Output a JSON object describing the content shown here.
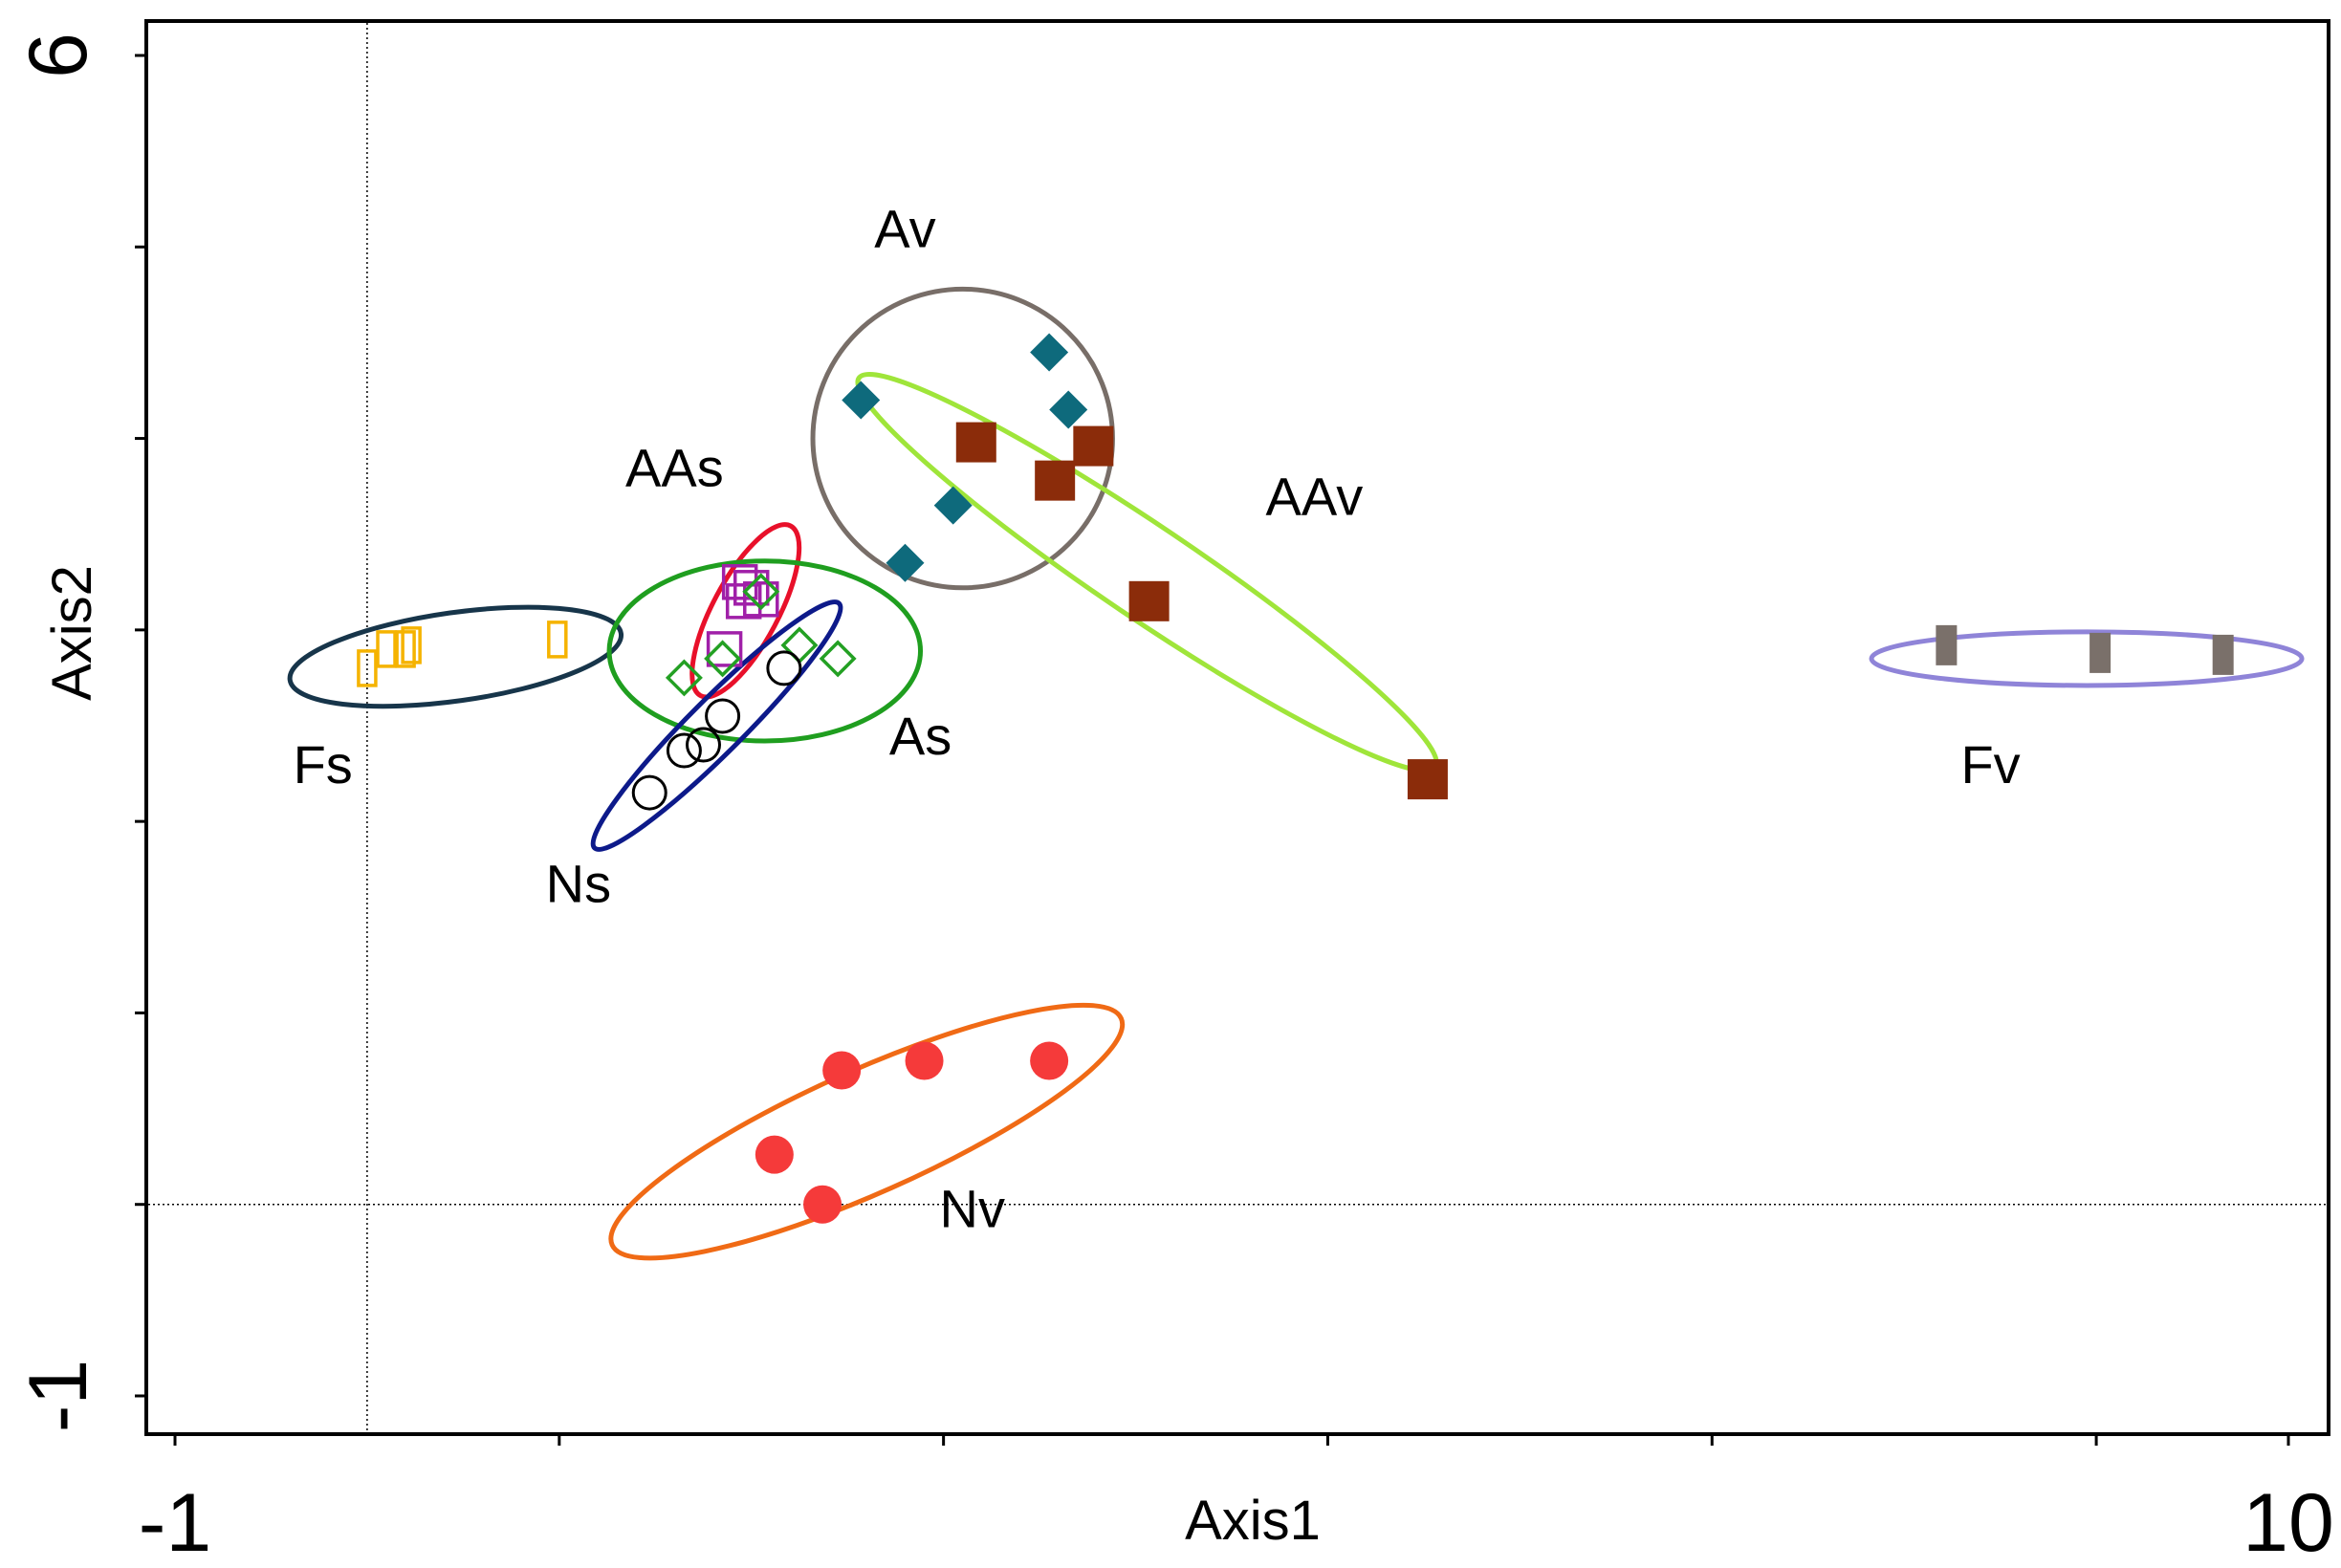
{
  "chart_data": {
    "type": "scatter",
    "xlabel": "Axis1",
    "ylabel": "Axis2",
    "xlim": [
      -1,
      10
    ],
    "ylim": [
      -1,
      6
    ],
    "x_tick_labels": [
      {
        "value": -1,
        "label": "-1"
      },
      {
        "value": 10,
        "label": "10"
      }
    ],
    "y_tick_labels": [
      {
        "value": -1,
        "label": "-1"
      },
      {
        "value": 6,
        "label": "6"
      }
    ],
    "x_ticks": [
      -1,
      1,
      3,
      5,
      7,
      9,
      10
    ],
    "y_ticks": [
      -1,
      0,
      1,
      2,
      3,
      4,
      5,
      6
    ],
    "reference_lines": {
      "x": 0,
      "y": 0
    },
    "series": [
      {
        "name": "Fs",
        "marker": "square-open",
        "color": "#f5b300",
        "points": [
          [
            0.0,
            2.8
          ],
          [
            0.1,
            2.9
          ],
          [
            0.2,
            2.9
          ],
          [
            0.23,
            2.92
          ],
          [
            0.99,
            2.95
          ]
        ],
        "ellipse": {
          "cx": 0.46,
          "cy": 2.86,
          "rx": 0.87,
          "ry": 0.23,
          "rotate": -8,
          "color": "#17354a"
        }
      },
      {
        "name": "AAs",
        "marker": "square-open",
        "color": "#a020a8",
        "points": [
          [
            1.94,
            3.25
          ],
          [
            2.0,
            3.22
          ],
          [
            2.05,
            3.16
          ],
          [
            1.96,
            3.15
          ],
          [
            1.86,
            2.9
          ]
        ],
        "ellipse": {
          "cx": 1.97,
          "cy": 3.1,
          "rx": 0.5,
          "ry": 0.17,
          "rotate": -62,
          "color": "#e8102a"
        }
      },
      {
        "name": "As",
        "marker": "diamond-open",
        "color": "#23a023",
        "points": [
          [
            1.65,
            2.75
          ],
          [
            1.85,
            2.85
          ],
          [
            2.05,
            3.2
          ],
          [
            2.25,
            2.92
          ],
          [
            2.45,
            2.85
          ]
        ],
        "ellipse": {
          "cx": 2.07,
          "cy": 2.89,
          "rx": 0.81,
          "ry": 0.47,
          "rotate": 0,
          "color": "#1f9e1f"
        }
      },
      {
        "name": "Ns",
        "marker": "circle-open",
        "color": "#000000",
        "points": [
          [
            1.47,
            2.15
          ],
          [
            1.65,
            2.37
          ],
          [
            1.75,
            2.4
          ],
          [
            1.85,
            2.55
          ],
          [
            2.17,
            2.8
          ]
        ],
        "ellipse": {
          "cx": 1.82,
          "cy": 2.5,
          "rx": 0.9,
          "ry": 0.14,
          "rotate": -45,
          "color": "#0d1a8a"
        }
      },
      {
        "name": "Av",
        "marker": "diamond",
        "color": "#0e6a7c",
        "points": [
          [
            2.57,
            4.2
          ],
          [
            3.55,
            4.45
          ],
          [
            3.65,
            4.15
          ],
          [
            3.05,
            3.65
          ],
          [
            2.8,
            3.35
          ]
        ],
        "ellipse": {
          "cx": 3.1,
          "cy": 4.0,
          "rx": 0.78,
          "ry": 0.78,
          "rotate": 0,
          "color": "#786e68"
        }
      },
      {
        "name": "AAv",
        "marker": "square",
        "color": "#8b2c0a",
        "points": [
          [
            3.17,
            3.98
          ],
          [
            3.78,
            3.96
          ],
          [
            3.58,
            3.78
          ],
          [
            4.07,
            3.15
          ],
          [
            5.52,
            2.22
          ]
        ],
        "ellipse": {
          "cx": 4.06,
          "cy": 3.3,
          "rx": 1.81,
          "ry": 0.24,
          "rotate": 34,
          "color": "#9fe53a"
        }
      },
      {
        "name": "Fv",
        "marker": "rect",
        "color": "#7a706a",
        "points": [
          [
            8.22,
            2.92
          ],
          [
            9.02,
            2.88
          ],
          [
            9.66,
            2.87
          ]
        ],
        "ellipse": {
          "cx": 8.95,
          "cy": 2.85,
          "rx": 1.12,
          "ry": 0.14,
          "rotate": 0,
          "color": "#8f84d8"
        }
      },
      {
        "name": "Nv",
        "marker": "circle",
        "color": "#f53a3a",
        "points": [
          [
            2.47,
            0.7
          ],
          [
            2.9,
            0.75
          ],
          [
            3.55,
            0.75
          ],
          [
            2.12,
            0.26
          ],
          [
            2.37,
            0.0
          ]
        ],
        "ellipse": {
          "cx": 2.6,
          "cy": 0.38,
          "rx": 1.45,
          "ry": 0.32,
          "rotate": -24,
          "color": "#f06a15"
        }
      }
    ],
    "labels": [
      {
        "text": "Fs",
        "x": -0.23,
        "y": 2.2
      },
      {
        "text": "AAs",
        "x": 1.6,
        "y": 3.75
      },
      {
        "text": "As",
        "x": 2.88,
        "y": 2.35
      },
      {
        "text": "Ns",
        "x": 1.1,
        "y": 1.58
      },
      {
        "text": "Av",
        "x": 2.8,
        "y": 5.0
      },
      {
        "text": "AAv",
        "x": 4.93,
        "y": 3.6
      },
      {
        "text": "Fv",
        "x": 8.45,
        "y": 2.2
      },
      {
        "text": "Nv",
        "x": 3.15,
        "y": -0.12
      }
    ]
  }
}
